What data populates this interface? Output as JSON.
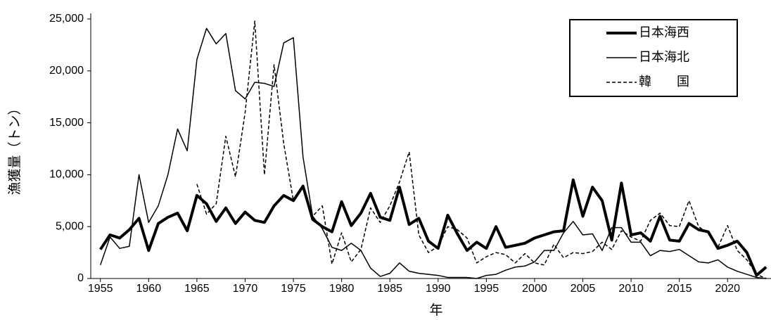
{
  "chart_data": {
    "type": "line",
    "xlabel": "年",
    "ylabel": "漁獲量（トン）",
    "x": [
      1955,
      1956,
      1957,
      1958,
      1959,
      1960,
      1961,
      1962,
      1963,
      1964,
      1965,
      1966,
      1967,
      1968,
      1969,
      1970,
      1971,
      1972,
      1973,
      1974,
      1975,
      1976,
      1977,
      1978,
      1979,
      1980,
      1981,
      1982,
      1983,
      1984,
      1985,
      1986,
      1987,
      1988,
      1989,
      1990,
      1991,
      1992,
      1993,
      1994,
      1995,
      1996,
      1997,
      1998,
      1999,
      2000,
      2001,
      2002,
      2003,
      2004,
      2005,
      2006,
      2007,
      2008,
      2009,
      2010,
      2011,
      2012,
      2013,
      2014,
      2015,
      2016,
      2017,
      2018,
      2019,
      2020,
      2021,
      2022,
      2023,
      2024
    ],
    "xlim": [
      1954,
      2024.5
    ],
    "xticks": [
      1955,
      1960,
      1965,
      1970,
      1975,
      1980,
      1985,
      1990,
      1995,
      2000,
      2005,
      2010,
      2015,
      2020
    ],
    "ylim": [
      0,
      25000
    ],
    "yticks": [
      0,
      {
        "value": 5000,
        "label": "5,000"
      },
      {
        "value": 10000,
        "label": "10,000"
      },
      {
        "value": 15000,
        "label": "15,000"
      },
      {
        "value": 20000,
        "label": "20,000"
      },
      {
        "value": 25000,
        "label": "25,000"
      }
    ],
    "legend": "upper right",
    "series": [
      {
        "name": "日本海西",
        "color": "#000000",
        "width": 4,
        "dash": false,
        "values": [
          2800,
          4200,
          3900,
          4700,
          5800,
          2700,
          5300,
          5900,
          6300,
          4600,
          8000,
          7200,
          5500,
          6800,
          5300,
          6400,
          5600,
          5400,
          7000,
          8000,
          7500,
          8900,
          5700,
          5000,
          4500,
          7400,
          5100,
          6300,
          8200,
          5900,
          5600,
          8800,
          5200,
          5800,
          3600,
          2900,
          6100,
          4300,
          2700,
          3500,
          2900,
          5000,
          3000,
          3200,
          3400,
          3900,
          4200,
          4500,
          4600,
          9500,
          6000,
          8800,
          7500,
          3700,
          9200,
          4200,
          4400,
          3600,
          6000,
          3700,
          3600,
          5300,
          4700,
          4500,
          2900,
          3200,
          3600,
          2500,
          300,
          1100
        ]
      },
      {
        "name": "日本海北",
        "color": "#000000",
        "width": 1.5,
        "dash": false,
        "values": [
          1300,
          4000,
          2900,
          3100,
          10000,
          5400,
          7000,
          10000,
          14400,
          12300,
          21100,
          24100,
          22600,
          23600,
          18100,
          17300,
          18900,
          18800,
          18500,
          22700,
          23200,
          11700,
          6000,
          4800,
          3000,
          2700,
          3400,
          2700,
          1000,
          200,
          500,
          1500,
          700,
          500,
          400,
          300,
          100,
          100,
          100,
          0,
          300,
          400,
          800,
          1100,
          1200,
          1600,
          2700,
          2700,
          4400,
          5500,
          4200,
          4300,
          2700,
          4900,
          4900,
          3500,
          3500,
          2200,
          2700,
          2600,
          2800,
          2200,
          1600,
          1500,
          1800,
          1100,
          700,
          400,
          100,
          0
        ]
      },
      {
        "name": "韓　　国",
        "color": "#000000",
        "width": 1.5,
        "dash": true,
        "values": [
          null,
          null,
          null,
          null,
          null,
          null,
          null,
          null,
          null,
          null,
          9100,
          6200,
          7200,
          13700,
          9800,
          16000,
          24800,
          10000,
          20600,
          13000,
          7500,
          8900,
          6000,
          7000,
          1400,
          4400,
          1600,
          2800,
          6800,
          5400,
          7000,
          9300,
          12200,
          4200,
          2500,
          3100,
          5000,
          4700,
          3900,
          1500,
          2100,
          2500,
          2300,
          1500,
          2400,
          1500,
          1300,
          3300,
          2000,
          2500,
          2400,
          2600,
          3500,
          2800,
          4600,
          4000,
          3600,
          5600,
          6300,
          5100,
          5000,
          7500,
          5000,
          4300,
          3000,
          5100,
          2700,
          1800,
          400,
          0
        ]
      }
    ]
  }
}
